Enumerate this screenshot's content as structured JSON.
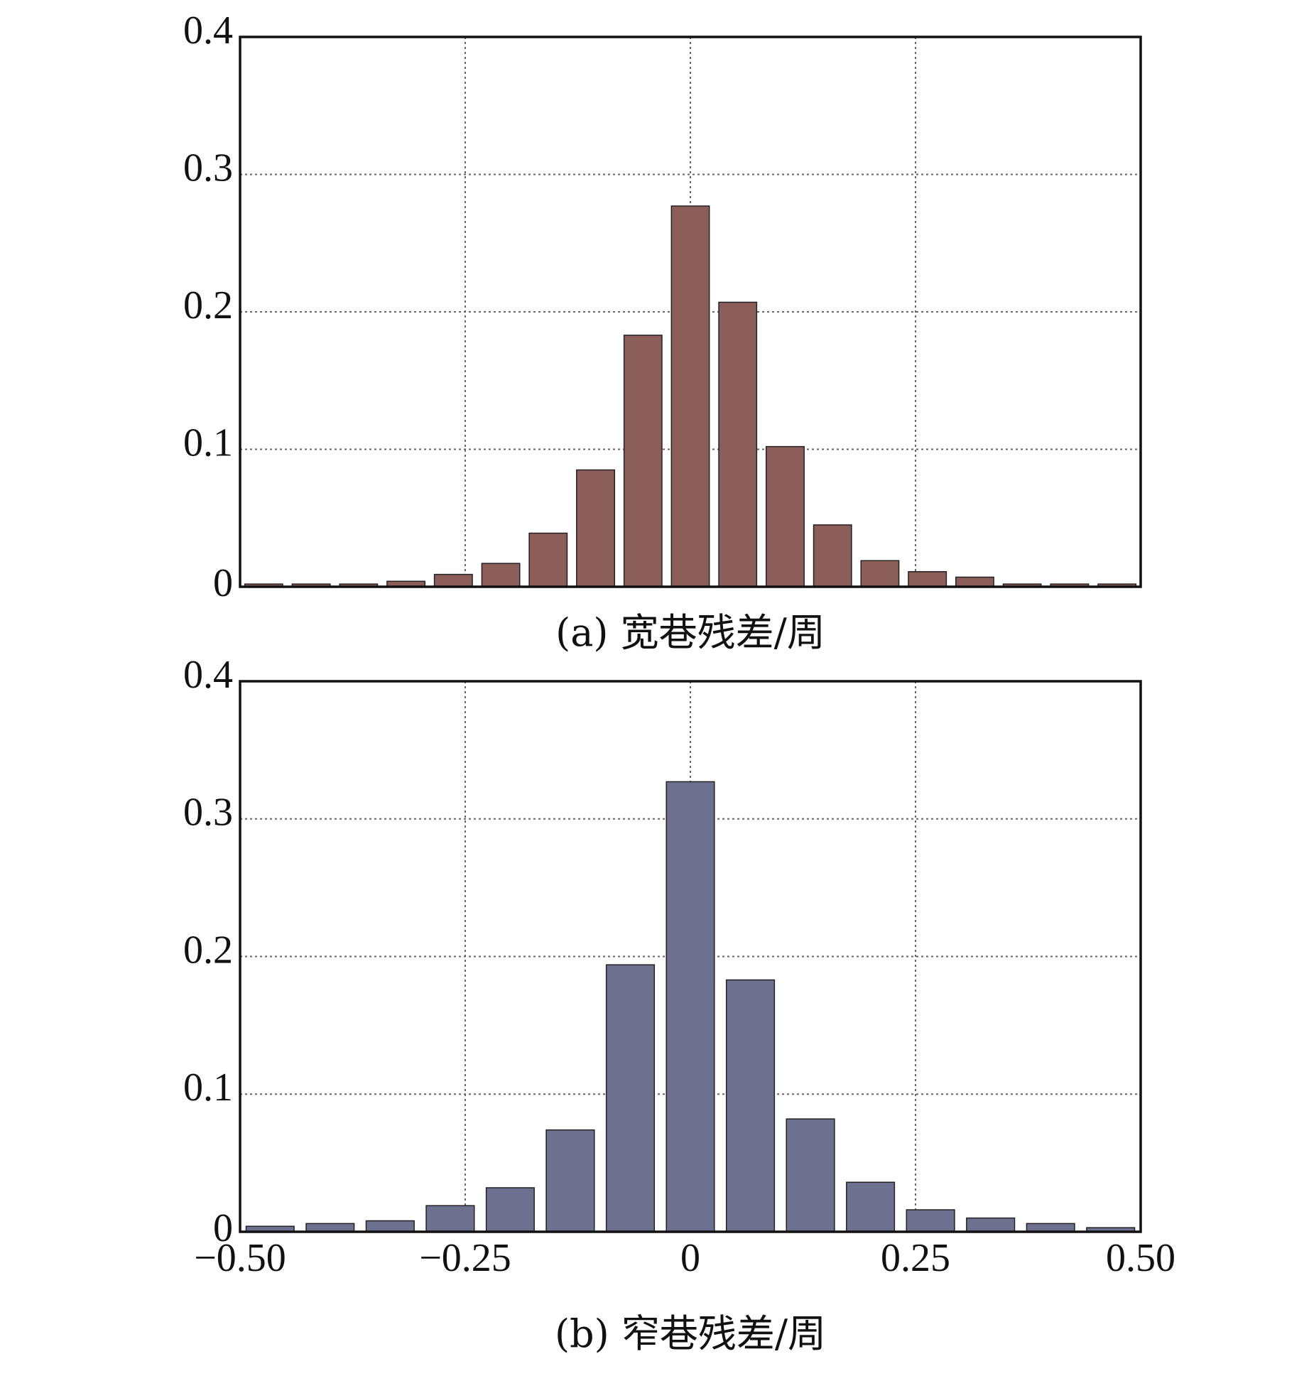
{
  "chart_data": [
    {
      "type": "histogram",
      "xlabel": "(a) 宽巷残差/周",
      "bins": [
        -0.5,
        -0.4474,
        -0.3947,
        -0.3421,
        -0.2895,
        -0.2368,
        -0.1842,
        -0.1316,
        -0.0789,
        -0.0263,
        0.0263,
        0.0789,
        0.1316,
        0.1842,
        0.2368,
        0.2895,
        0.3421,
        0.3947,
        0.4474,
        0.5
      ],
      "values": [
        0.002,
        0.002,
        0.002,
        0.004,
        0.009,
        0.017,
        0.039,
        0.085,
        0.183,
        0.277,
        0.207,
        0.102,
        0.045,
        0.019,
        0.011,
        0.007,
        0.002,
        0.002,
        0.002
      ],
      "color": "#8b5e5a",
      "xlim": [
        -0.5,
        0.5
      ],
      "xticks": [
        -0.5,
        -0.25,
        0,
        0.25,
        0.5
      ],
      "xtick_labels": false,
      "ylim": [
        0,
        0.4
      ],
      "yticks": [
        0,
        0.1,
        0.2,
        0.3,
        0.4
      ],
      "grid": true
    },
    {
      "type": "histogram",
      "xlabel": "(b) 窄巷残差/周",
      "bins": [
        -0.5,
        -0.4333,
        -0.3667,
        -0.3,
        -0.2333,
        -0.1667,
        -0.1,
        -0.0333,
        0.0333,
        0.1,
        0.1667,
        0.2333,
        0.3,
        0.3667,
        0.4333,
        0.5
      ],
      "values": [
        0.004,
        0.006,
        0.008,
        0.019,
        0.032,
        0.074,
        0.194,
        0.327,
        0.183,
        0.082,
        0.036,
        0.016,
        0.01,
        0.006,
        0.003
      ],
      "color": "#6e7090",
      "xlim": [
        -0.5,
        0.5
      ],
      "xticks": [
        {
          "value": -0.5,
          "label": "−0.50"
        },
        {
          "value": -0.25,
          "label": "−0.25"
        },
        0,
        0.25,
        {
          "value": 0.5,
          "label": "0.50"
        }
      ],
      "xtick_labels": true,
      "ylim": [
        0,
        0.4
      ],
      "yticks": [
        0,
        0.1,
        0.2,
        0.3,
        0.4
      ],
      "grid": true
    }
  ]
}
